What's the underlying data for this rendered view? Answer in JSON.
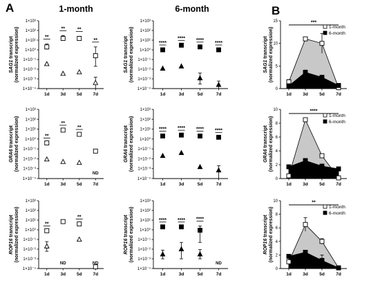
{
  "panel_labels": {
    "A": "A",
    "B": "B"
  },
  "column_titles": {
    "one_month": "1-month",
    "six_month": "6-month"
  },
  "legend": {
    "one_month": "1-month",
    "six_month": "6-month"
  },
  "colors": {
    "one_month_fill": "#ffffff",
    "six_month_fill": "#000000",
    "area_one_month": "#c8c8c8",
    "area_six_month": "#000000"
  },
  "nd_label": "ND",
  "chart_data": [
    {
      "id": "sag1-1month",
      "type": "scatter",
      "yscale": "log",
      "ylabel_gene": "SAG1",
      "ylabel": "transcript",
      "ylabel2": "(normalized expression)",
      "ylim": [
        0.0001,
        1000
      ],
      "ytick_labels": [
        "1×10³",
        "1×10²",
        "1×10¹",
        "1×10⁰",
        "1×10⁻¹",
        "1×10⁻²",
        "1×10⁻³",
        "1×10⁻⁴"
      ],
      "categories": [
        "1d",
        "3d",
        "5d",
        "7d"
      ],
      "series": [
        {
          "marker": "square-open",
          "values": [
            2,
            15,
            15,
            0.25
          ],
          "err_hi": [
            4,
            30,
            25,
            2
          ],
          "err_lo": [
            1.2,
            10,
            10,
            0.02
          ]
        },
        {
          "marker": "triangle-open",
          "values": [
            0.035,
            0.0035,
            0.005,
            0.0004
          ],
          "err_hi": [
            null,
            null,
            null,
            0.0015
          ],
          "err_lo": [
            null,
            null,
            null,
            0.0001
          ]
        }
      ],
      "annotations": [
        {
          "x": "1d",
          "text": "**"
        },
        {
          "x": "3d",
          "text": "**"
        },
        {
          "x": "5d",
          "text": "**"
        },
        {
          "x": "7d",
          "text": "**"
        }
      ]
    },
    {
      "id": "sag1-6month",
      "type": "scatter",
      "yscale": "log",
      "ylabel_gene": "SAG1",
      "ylabel": "transcript",
      "ylabel2": "(normalized expression)",
      "ylim": [
        0.0001,
        1000
      ],
      "ytick_labels": [
        "1×10³",
        "1×10²",
        "1×10¹",
        "1×10⁰",
        "1×10⁻¹",
        "1×10⁻²",
        "1×10⁻³",
        "1×10⁻⁴"
      ],
      "categories": [
        "1d",
        "3d",
        "5d",
        "7d"
      ],
      "series": [
        {
          "marker": "square-filled",
          "values": [
            1,
            3,
            2,
            1
          ],
          "err_hi": [
            null,
            null,
            null,
            null
          ],
          "err_lo": [
            null,
            null,
            null,
            null
          ]
        },
        {
          "marker": "triangle-filled",
          "values": [
            0.012,
            0.02,
            0.0012,
            0.00025
          ],
          "err_hi": [
            null,
            null,
            0.004,
            0.0006
          ],
          "err_lo": [
            null,
            null,
            0.0003,
            0.0001
          ]
        }
      ],
      "annotations": [
        {
          "x": "1d",
          "text": "****"
        },
        {
          "x": "3d",
          "text": "****"
        },
        {
          "x": "5d",
          "text": "****"
        },
        {
          "x": "7d",
          "text": "****"
        }
      ]
    },
    {
      "id": "sag1-area",
      "type": "area",
      "ylabel_gene": "SAG1",
      "ylabel": "transcript",
      "ylabel2": "(normalized expression)",
      "ylim": [
        0,
        15
      ],
      "yticks": [
        0,
        5,
        10,
        15
      ],
      "categories": [
        "1d",
        "3d",
        "5d",
        "7d"
      ],
      "series": [
        {
          "name": "1-month",
          "values": [
            1.5,
            11,
            10,
            0.2
          ],
          "err": [
            0.5,
            0.4,
            2.2,
            0.1
          ]
        },
        {
          "name": "6-month",
          "values": [
            0.6,
            3.6,
            2.5,
            0.7
          ],
          "err": [
            0.2,
            0.5,
            0.3,
            0.1
          ]
        }
      ],
      "annotation": "***"
    },
    {
      "id": "gra6-1month",
      "type": "scatter",
      "yscale": "log",
      "ylabel_gene": "GRA6",
      "ylabel": "transcript",
      "ylabel2": "(normalized expression)",
      "ylim": [
        0.0001,
        1000
      ],
      "ytick_labels": [
        "1×10³",
        "1×10²",
        "1×10¹",
        "1×10⁰",
        "1×10⁻¹",
        "1×10⁻²",
        "1×10⁻³",
        "1×10⁻⁴"
      ],
      "categories": [
        "1d",
        "3d",
        "5d",
        "7d"
      ],
      "series": [
        {
          "marker": "square-open",
          "values": [
            0.4,
            8,
            3,
            0.06
          ],
          "err_hi": [
            null,
            null,
            null,
            null
          ],
          "err_lo": [
            null,
            null,
            null,
            null
          ]
        },
        {
          "marker": "triangle-open",
          "values": [
            0.009,
            0.005,
            0.004,
            null
          ],
          "err_hi": [
            null,
            null,
            null,
            null
          ],
          "err_lo": [
            null,
            null,
            null,
            null
          ]
        }
      ],
      "annotations": [
        {
          "x": "1d",
          "text": "**"
        },
        {
          "x": "3d",
          "text": "**"
        },
        {
          "x": "5d",
          "text": "**"
        }
      ],
      "nd": [
        "7d"
      ]
    },
    {
      "id": "gra6-6month",
      "type": "scatter",
      "yscale": "log",
      "ylabel_gene": "GRA6",
      "ylabel": "transcript",
      "ylabel2": "(normalized expression)",
      "ylim": [
        0.0001,
        1000
      ],
      "ytick_labels": [
        "1×10³",
        "1×10²",
        "1×10¹",
        "1×10⁰",
        "1×10⁻¹",
        "1×10⁻²",
        "1×10⁻³",
        "1×10⁻⁴"
      ],
      "categories": [
        "1d",
        "3d",
        "5d",
        "7d"
      ],
      "series": [
        {
          "marker": "square-filled",
          "values": [
            2,
            2.5,
            2,
            1.5
          ],
          "err_hi": [
            null,
            null,
            null,
            null
          ],
          "err_lo": [
            null,
            null,
            null,
            null
          ]
        },
        {
          "marker": "triangle-filled",
          "values": [
            0.02,
            0.04,
            0.0015,
            0.0007
          ],
          "err_hi": [
            null,
            null,
            null,
            0.002
          ],
          "err_lo": [
            null,
            null,
            null,
            0.0001
          ]
        }
      ],
      "annotations": [
        {
          "x": "1d",
          "text": "****"
        },
        {
          "x": "3d",
          "text": "****"
        },
        {
          "x": "5d",
          "text": "****"
        },
        {
          "x": "7d",
          "text": "****"
        }
      ]
    },
    {
      "id": "gra6-area",
      "type": "area",
      "ylabel_gene": "GRA6",
      "ylabel": "transcript",
      "ylabel2": "(normalized expression)",
      "ylim": [
        0,
        10
      ],
      "yticks": [
        0,
        2,
        4,
        6,
        8,
        10
      ],
      "categories": [
        "1d",
        "3d",
        "5d",
        "7d"
      ],
      "series": [
        {
          "name": "1-month",
          "values": [
            0.4,
            8.5,
            3.3,
            0.1
          ],
          "err": [
            0.1,
            0.2,
            0.2,
            0.05
          ]
        },
        {
          "name": "6-month",
          "values": [
            1.7,
            2.6,
            1.8,
            1.4
          ],
          "err": [
            0.2,
            0.3,
            0.2,
            0.2
          ]
        }
      ],
      "annotation": "****"
    },
    {
      "id": "rop16-1month",
      "type": "scatter",
      "yscale": "log",
      "ylabel_gene": "ROP16",
      "ylabel": "transcript",
      "ylabel2": "(normalized expression)",
      "ylim": [
        0.0001,
        1000
      ],
      "ytick_labels": [
        "1×10³",
        "1×10²",
        "1×10¹",
        "1×10⁰",
        "1×10⁻¹",
        "1×10⁻²",
        "1×10⁻³",
        "1×10⁻⁴"
      ],
      "categories": [
        "1d",
        "3d",
        "5d",
        "7d"
      ],
      "series": [
        {
          "marker": "square-open",
          "values": [
            0.8,
            7,
            4,
            0.0001
          ],
          "err_hi": [
            null,
            null,
            null,
            null
          ],
          "err_lo": [
            null,
            null,
            null,
            null
          ]
        },
        {
          "marker": "triangle-open",
          "values": [
            0.02,
            null,
            0.1,
            null
          ],
          "err_hi": [
            0.06,
            null,
            null,
            null
          ],
          "err_lo": [
            0.006,
            null,
            null,
            null
          ]
        }
      ],
      "annotations": [
        {
          "x": "1d",
          "text": "**"
        },
        {
          "x": "5d",
          "text": "**"
        }
      ],
      "nd": [
        "3d",
        "7d"
      ]
    },
    {
      "id": "rop16-6month",
      "type": "scatter",
      "yscale": "log",
      "ylabel_gene": "ROP16",
      "ylabel": "transcript",
      "ylabel2": "(normalized expression)",
      "ylim": [
        0.0001,
        1000
      ],
      "ytick_labels": [
        "1×10³",
        "1×10²",
        "1×10¹",
        "1×10⁰",
        "1×10⁻¹",
        "1×10⁻²",
        "1×10⁻³",
        "1×10⁻⁴"
      ],
      "categories": [
        "1d",
        "3d",
        "5d",
        "7d"
      ],
      "series": [
        {
          "marker": "square-filled",
          "values": [
            2,
            2,
            0.9,
            null
          ],
          "err_hi": [
            null,
            null,
            2.5,
            null
          ],
          "err_lo": [
            null,
            null,
            0.05,
            null
          ]
        },
        {
          "marker": "triangle-filled",
          "values": [
            0.003,
            0.01,
            0.003,
            null
          ],
          "err_hi": [
            0.008,
            0.05,
            0.009,
            null
          ],
          "err_lo": [
            0.001,
            0.001,
            0.001,
            null
          ]
        }
      ],
      "annotations": [
        {
          "x": "1d",
          "text": "****"
        },
        {
          "x": "3d",
          "text": "****"
        },
        {
          "x": "5d",
          "text": "****"
        }
      ],
      "nd": [
        "7d"
      ]
    },
    {
      "id": "rop16-area",
      "type": "area",
      "ylabel_gene": "ROP16",
      "ylabel": "transcript",
      "ylabel2": "(normalized expression)",
      "ylim": [
        0,
        10
      ],
      "yticks": [
        0,
        2,
        4,
        6,
        8,
        10
      ],
      "categories": [
        "1d",
        "3d",
        "5d",
        "7d"
      ],
      "series": [
        {
          "name": "1-month",
          "values": [
            1,
            6.5,
            4,
            0.1
          ],
          "err": [
            0.3,
            1.0,
            0.4,
            0.05
          ]
        },
        {
          "name": "6-month",
          "values": [
            1.8,
            2.4,
            1.2,
            0.1
          ],
          "err": [
            0.2,
            0.3,
            0.8,
            0.05
          ]
        }
      ],
      "annotation": "**"
    }
  ]
}
